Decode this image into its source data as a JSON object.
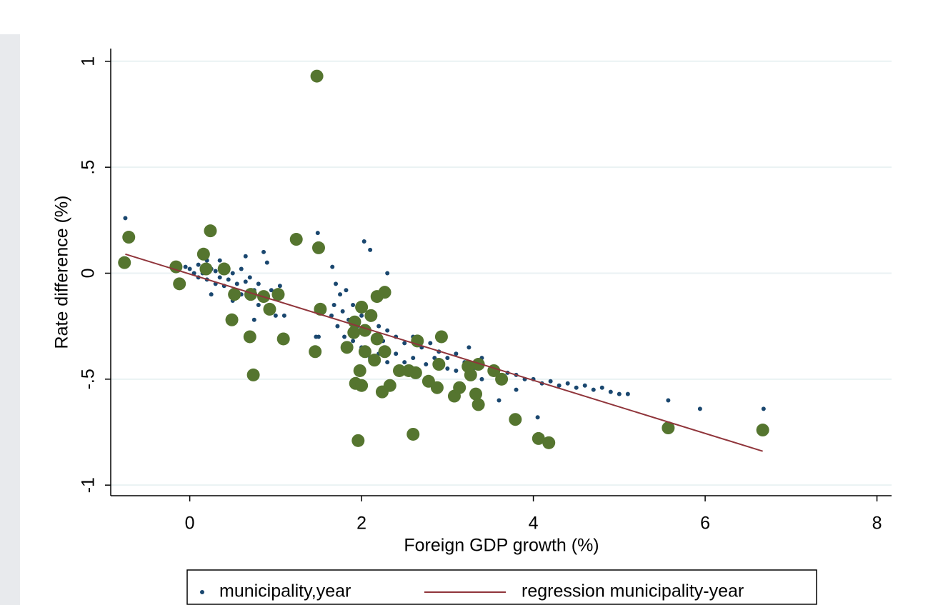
{
  "chart_data": {
    "type": "scatter",
    "x_label": "Foreign GDP growth (%)",
    "y_label": "Rate difference (%)",
    "xlim": [
      -0.92,
      8.17
    ],
    "xticks": [
      0,
      2,
      4,
      6,
      8
    ],
    "ylim": [
      -1.05,
      1.06
    ],
    "yticks": [
      -1,
      {
        "value": -0.5,
        "label": "-.5"
      },
      0,
      {
        "value": 0.5,
        "label": ".5"
      },
      1
    ],
    "grid": "y",
    "legend": "bottom",
    "series": [
      {
        "name": "municipality,year",
        "type": "scatter",
        "color": "#1a476f",
        "marker_size": 3,
        "x": [
          -0.05,
          0.0,
          0.05,
          0.1,
          0.1,
          0.15,
          0.2,
          0.2,
          0.25,
          0.3,
          0.3,
          0.35,
          0.4,
          0.4,
          0.45,
          0.5,
          0.5,
          0.55,
          0.6,
          0.6,
          0.65,
          0.7,
          0.7,
          0.75,
          0.8,
          0.8,
          0.85,
          0.9,
          0.9,
          0.95,
          1.0,
          1.0,
          1.05,
          1.1,
          0.25,
          0.5,
          0.75,
          0.65,
          0.86,
          0.35,
          1.65,
          1.68,
          1.7,
          1.72,
          1.75,
          1.78,
          1.8,
          1.82,
          1.85,
          1.9,
          1.9,
          1.95,
          2.0,
          2.0,
          2.05,
          2.1,
          2.1,
          2.15,
          2.2,
          2.2,
          2.25,
          2.3,
          2.3,
          2.4,
          2.4,
          2.5,
          2.5,
          2.6,
          2.6,
          2.7,
          2.75,
          2.8,
          2.85,
          2.9,
          3.0,
          3.0,
          3.1,
          3.1,
          3.2,
          3.25,
          3.3,
          3.4,
          3.4,
          3.5,
          3.6,
          3.7,
          3.8,
          3.8,
          3.9,
          4.0,
          4.1,
          4.2,
          4.3,
          4.4,
          4.5,
          4.6,
          4.7,
          4.8,
          4.9,
          5.0,
          5.1,
          2.2,
          2.3,
          1.5,
          3.6,
          3.3,
          -0.75,
          1.49,
          2.03,
          2.1,
          1.66,
          6.68,
          5.94,
          5.57,
          4.05,
          1.47
        ],
        "values": [
          0.03,
          0.02,
          0.0,
          0.04,
          -0.02,
          0.0,
          -0.03,
          0.06,
          0.02,
          -0.05,
          0.01,
          -0.02,
          -0.06,
          0.03,
          -0.03,
          -0.08,
          0.0,
          -0.05,
          -0.1,
          0.02,
          -0.04,
          -0.12,
          -0.02,
          -0.08,
          -0.15,
          -0.05,
          -0.1,
          0.05,
          -0.18,
          -0.08,
          -0.12,
          -0.2,
          -0.06,
          -0.2,
          -0.1,
          -0.13,
          -0.22,
          0.08,
          0.1,
          0.06,
          -0.2,
          -0.15,
          -0.05,
          -0.25,
          -0.1,
          -0.18,
          -0.3,
          -0.08,
          -0.22,
          -0.15,
          -0.32,
          -0.25,
          -0.2,
          -0.35,
          -0.28,
          -0.22,
          -0.4,
          -0.3,
          -0.25,
          -0.38,
          -0.32,
          -0.27,
          -0.42,
          -0.3,
          -0.38,
          -0.33,
          -0.42,
          -0.3,
          -0.4,
          -0.35,
          -0.43,
          -0.33,
          -0.4,
          -0.37,
          -0.4,
          -0.45,
          -0.38,
          -0.46,
          -0.42,
          -0.35,
          -0.45,
          -0.4,
          -0.5,
          -0.46,
          -0.5,
          -0.47,
          -0.55,
          -0.48,
          -0.5,
          -0.5,
          -0.52,
          -0.51,
          -0.53,
          -0.52,
          -0.54,
          -0.53,
          -0.55,
          -0.54,
          -0.56,
          -0.57,
          -0.57,
          -0.1,
          0.0,
          -0.3,
          -0.6,
          -0.58,
          0.26,
          0.19,
          0.15,
          0.11,
          0.03,
          -0.64,
          -0.64,
          -0.6,
          -0.68,
          -0.3
        ]
      },
      {
        "type": "scatter",
        "color": "#55752f",
        "marker_size": 9,
        "x": [
          -0.76,
          -0.71,
          1.48,
          0.24,
          1.24,
          1.5,
          0.16,
          -0.16,
          -0.12,
          0.19,
          0.4,
          0.52,
          0.71,
          0.86,
          1.03,
          0.93,
          0.49,
          0.7,
          1.09,
          0.74,
          1.52,
          1.46,
          2.27,
          2.18,
          2.0,
          2.11,
          1.92,
          2.04,
          1.91,
          2.18,
          1.83,
          2.04,
          2.27,
          2.15,
          2.65,
          2.93,
          1.98,
          2.44,
          2.55,
          2.63,
          2.9,
          2.78,
          1.93,
          2.0,
          2.33,
          2.24,
          2.88,
          3.08,
          3.14,
          3.24,
          3.27,
          3.36,
          3.33,
          3.36,
          3.54,
          3.63,
          3.79,
          4.06,
          4.18,
          1.96,
          2.6,
          5.57,
          6.67
        ],
        "values": [
          0.05,
          0.17,
          0.93,
          0.2,
          0.16,
          0.12,
          0.09,
          0.03,
          -0.05,
          0.02,
          0.02,
          -0.1,
          -0.1,
          -0.11,
          -0.1,
          -0.17,
          -0.22,
          -0.3,
          -0.31,
          -0.48,
          -0.17,
          -0.37,
          -0.09,
          -0.11,
          -0.16,
          -0.2,
          -0.23,
          -0.27,
          -0.28,
          -0.31,
          -0.35,
          -0.37,
          -0.37,
          -0.41,
          -0.32,
          -0.3,
          -0.46,
          -0.46,
          -0.46,
          -0.47,
          -0.43,
          -0.51,
          -0.52,
          -0.53,
          -0.53,
          -0.56,
          -0.54,
          -0.58,
          -0.54,
          -0.44,
          -0.48,
          -0.43,
          -0.57,
          -0.62,
          -0.46,
          -0.5,
          -0.69,
          -0.78,
          -0.8,
          -0.79,
          -0.76,
          -0.73,
          -0.74
        ]
      },
      {
        "name": "regression municipality-year",
        "type": "line",
        "color": "#90353b",
        "x": [
          -0.75,
          6.67
        ],
        "values": [
          0.09,
          -0.84
        ]
      }
    ]
  }
}
